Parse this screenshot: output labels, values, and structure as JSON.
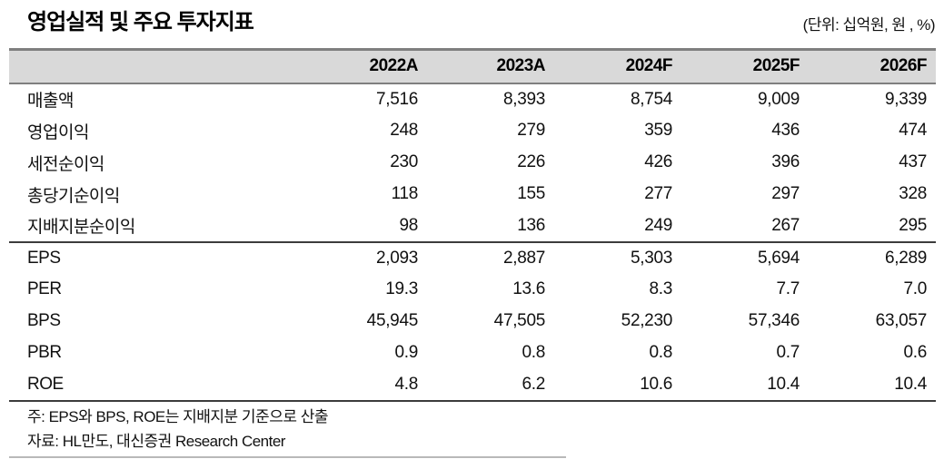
{
  "title": "영업실적 및 주요 투자지표",
  "unit_label": "(단위: 십억원, 원 , %)",
  "table": {
    "columns": [
      "2022A",
      "2023A",
      "2024F",
      "2025F",
      "2026F"
    ],
    "financials": [
      {
        "label": "매출액",
        "values": [
          "7,516",
          "8,393",
          "8,754",
          "9,009",
          "9,339"
        ]
      },
      {
        "label": "영업이익",
        "values": [
          "248",
          "279",
          "359",
          "436",
          "474"
        ]
      },
      {
        "label": "세전순이익",
        "values": [
          "230",
          "226",
          "426",
          "396",
          "437"
        ]
      },
      {
        "label": "총당기순이익",
        "values": [
          "118",
          "155",
          "277",
          "297",
          "328"
        ]
      },
      {
        "label": "지배지분순이익",
        "values": [
          "98",
          "136",
          "249",
          "267",
          "295"
        ]
      }
    ],
    "ratios": [
      {
        "label": "EPS",
        "values": [
          "2,093",
          "2,887",
          "5,303",
          "5,694",
          "6,289"
        ]
      },
      {
        "label": "PER",
        "values": [
          "19.3",
          "13.6",
          "8.3",
          "7.7",
          "7.0"
        ]
      },
      {
        "label": "BPS",
        "values": [
          "45,945",
          "47,505",
          "52,230",
          "57,346",
          "63,057"
        ]
      },
      {
        "label": "PBR",
        "values": [
          "0.9",
          "0.8",
          "0.8",
          "0.7",
          "0.6"
        ]
      },
      {
        "label": "ROE",
        "values": [
          "4.8",
          "6.2",
          "10.6",
          "10.4",
          "10.4"
        ]
      }
    ]
  },
  "footnotes": {
    "note": "주: EPS와 BPS, ROE는 지배지분 기준으로 산출",
    "source": "자료: HL만도, 대신증권 Research Center"
  }
}
